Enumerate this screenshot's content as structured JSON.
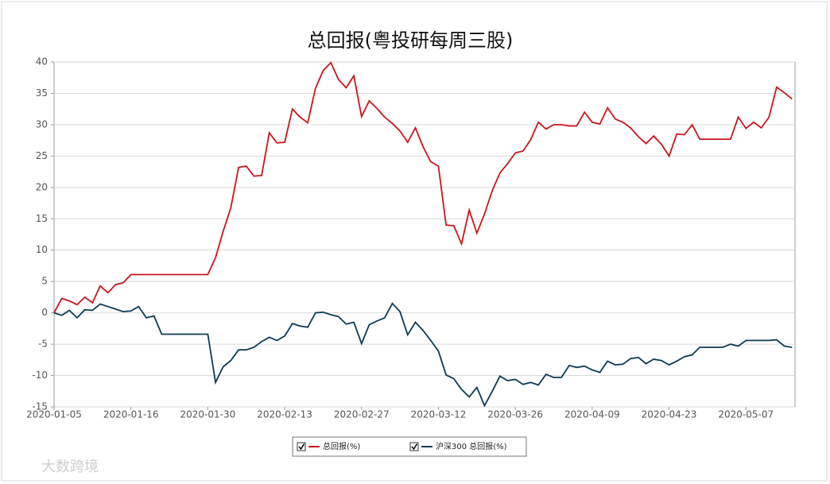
{
  "chart_data": {
    "type": "line",
    "title": "总回报(粤投研每周三股)",
    "categories": [
      "2020-01-05",
      null,
      null,
      null,
      null,
      null,
      null,
      null,
      null,
      null,
      "2020-01-16",
      null,
      null,
      null,
      null,
      null,
      null,
      null,
      null,
      null,
      "2020-01-30",
      null,
      null,
      null,
      null,
      null,
      null,
      null,
      null,
      null,
      "2020-02-13",
      null,
      null,
      null,
      null,
      null,
      null,
      null,
      null,
      null,
      "2020-02-27",
      null,
      null,
      null,
      null,
      null,
      null,
      null,
      null,
      null,
      "2020-03-12",
      null,
      null,
      null,
      null,
      null,
      null,
      null,
      null,
      null,
      "2020-03-26",
      null,
      null,
      null,
      null,
      null,
      null,
      null,
      null,
      null,
      "2020-04-09",
      null,
      null,
      null,
      null,
      null,
      null,
      null,
      null,
      null,
      "2020-04-23",
      null,
      null,
      null,
      null,
      null,
      null,
      null,
      null,
      null,
      "2020-05-07",
      null,
      null,
      null,
      null,
      null,
      null
    ],
    "series": [
      {
        "name": "总回报(%)",
        "color": "#c8161d",
        "values": [
          0,
          2.3,
          1.9,
          1.3,
          2.5,
          1.6,
          4.3,
          3.2,
          4.5,
          4.8,
          6.1,
          6.1,
          6.1,
          6.1,
          6.1,
          6.1,
          6.1,
          6.1,
          6.1,
          6.1,
          6.1,
          8.8,
          13.0,
          16.8,
          23.2,
          23.4,
          21.8,
          21.9,
          28.7,
          27.1,
          27.2,
          32.5,
          31.2,
          30.3,
          35.8,
          38.6,
          39.9,
          37.2,
          35.9,
          37.8,
          31.3,
          33.8,
          32.6,
          31.2,
          30.2,
          29.0,
          27.2,
          29.5,
          26.5,
          24.1,
          23.4,
          14.0,
          13.9,
          11.0,
          16.4,
          12.7,
          15.8,
          19.5,
          22.3,
          23.8,
          25.5,
          25.8,
          27.6,
          30.4,
          29.3,
          30.0,
          30.0,
          29.8,
          29.8,
          32.0,
          30.4,
          30.1,
          32.7,
          30.9,
          30.4,
          29.5,
          28.1,
          27.0,
          28.2,
          26.9,
          25.0,
          28.5,
          28.4,
          30.0,
          27.7,
          27.7,
          27.7,
          27.7,
          27.7,
          31.2,
          29.4,
          30.4,
          29.5,
          31.2,
          36.0,
          35.1,
          34.1
        ]
      },
      {
        "name": "沪深300 总回报(%)",
        "color": "#0e3a52",
        "values": [
          0,
          -0.4,
          0.4,
          -0.8,
          0.5,
          0.4,
          1.4,
          1.0,
          0.6,
          0.2,
          0.3,
          1.0,
          -0.8,
          -0.5,
          -3.4,
          -3.4,
          -3.4,
          -3.4,
          -3.4,
          -3.4,
          -3.4,
          -11.1,
          -8.6,
          -7.6,
          -5.9,
          -5.9,
          -5.5,
          -4.6,
          -3.9,
          -4.4,
          -3.7,
          -1.7,
          -2.1,
          -2.3,
          0,
          0.1,
          -0.3,
          -0.6,
          -1.8,
          -1.5,
          -4.9,
          -1.9,
          -1.3,
          -0.8,
          1.5,
          0.2,
          -3.5,
          -1.5,
          -2.8,
          -4.4,
          -6.1,
          -9.9,
          -10.5,
          -12.2,
          -13.4,
          -11.9,
          -14.8,
          -12.5,
          -10.1,
          -10.8,
          -10.6,
          -11.4,
          -11.1,
          -11.5,
          -9.8,
          -10.3,
          -10.3,
          -8.4,
          -8.7,
          -8.5,
          -9.1,
          -9.5,
          -7.7,
          -8.3,
          -8.2,
          -7.3,
          -7.1,
          -8.1,
          -7.4,
          -7.6,
          -8.3,
          -7.7,
          -7.0,
          -6.7,
          -5.5,
          -5.5,
          -5.5,
          -5.5,
          -5.0,
          -5.3,
          -4.4,
          -4.4,
          -4.4,
          -4.4,
          -4.3,
          -5.3,
          -5.5
        ]
      }
    ],
    "ylim": [
      -15,
      40
    ],
    "yticks": [
      -15,
      -10,
      -5,
      0,
      5,
      10,
      15,
      20,
      25,
      30,
      35,
      40
    ],
    "grid": true,
    "legend": "bottom"
  },
  "watermark": "大数跨境"
}
